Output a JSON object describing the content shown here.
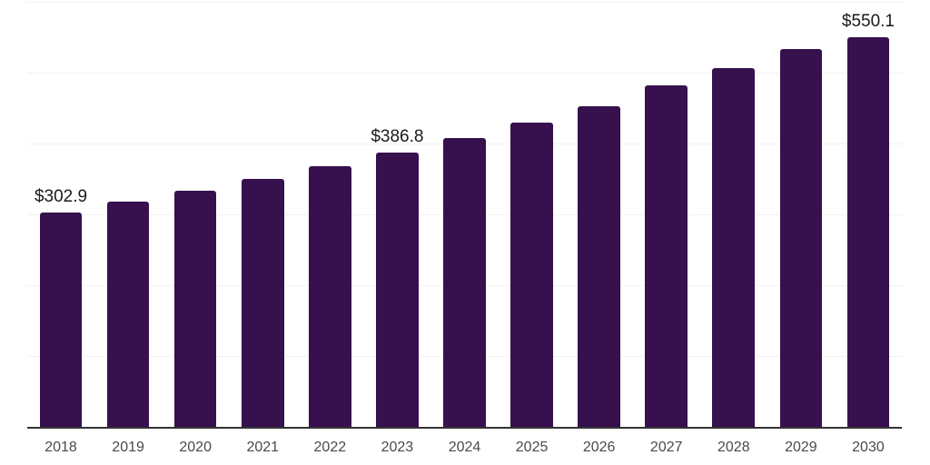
{
  "chart_data": {
    "type": "bar",
    "title": "",
    "xlabel": "",
    "ylabel": "",
    "categories": [
      "2018",
      "2019",
      "2020",
      "2021",
      "2022",
      "2023",
      "2024",
      "2025",
      "2026",
      "2027",
      "2028",
      "2029",
      "2030"
    ],
    "values": [
      302.9,
      318,
      333,
      350,
      368,
      386.8,
      408,
      429,
      452,
      482,
      507,
      533,
      550.1
    ],
    "labeled_points": [
      {
        "index": 0,
        "label": "$302.9"
      },
      {
        "index": 5,
        "label": "$386.8"
      },
      {
        "index": 12,
        "label": "$550.1"
      }
    ],
    "ylim": [
      0,
      600
    ],
    "gridline_interval": 100,
    "grid": true,
    "legend": "none",
    "colors": {
      "bar": "#36114d",
      "gridline": "#f2f2f2",
      "axis_line": "#333333",
      "tick_label": "#4a4a4a",
      "value_label": "#1a1a1a",
      "background": "#ffffff"
    }
  }
}
